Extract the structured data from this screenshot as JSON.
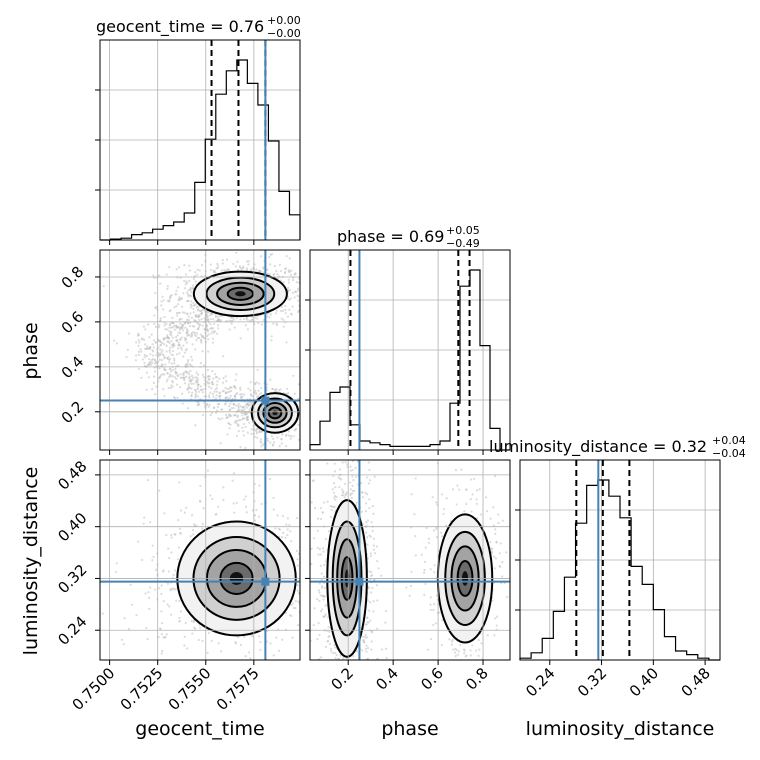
{
  "chart_data": {
    "type": "corner",
    "parameters": [
      "geocent_time",
      "phase",
      "luminosity_distance"
    ],
    "titles": [
      {
        "param": "geocent_time",
        "text": "geocent_time = 0.76",
        "sup": "+0.00",
        "sub": "−0.00"
      },
      {
        "param": "phase",
        "text": "phase = 0.69",
        "sup": "+0.05",
        "sub": "−0.49"
      },
      {
        "param": "luminosity_distance",
        "text": "luminosity_distance = 0.32",
        "sup": "+0.04",
        "sub": "−0.04"
      }
    ],
    "ranges": {
      "geocent_time": [
        0.7495,
        0.7599
      ],
      "phase": [
        0.03,
        0.92
      ],
      "luminosity_distance": [
        0.194,
        0.503
      ]
    },
    "ticks": {
      "geocent_time": [
        "0.7500",
        "0.7525",
        "0.7550",
        "0.7575"
      ],
      "phase": [
        "0.2",
        "0.4",
        "0.6",
        "0.8"
      ],
      "luminosity_distance": [
        "0.24",
        "0.32",
        "0.40",
        "0.48"
      ]
    },
    "tick_values": {
      "geocent_time": [
        0.75,
        0.7525,
        0.755,
        0.7575
      ],
      "phase": [
        0.2,
        0.4,
        0.6,
        0.8
      ],
      "luminosity_distance": [
        0.24,
        0.32,
        0.4,
        0.48
      ]
    },
    "truths": {
      "geocent_time": 0.7581,
      "phase": 0.25,
      "luminosity_distance": 0.315
    },
    "quantiles": {
      "geocent_time": [
        0.7553,
        0.7567,
        0.7581
      ],
      "phase": [
        0.21,
        0.69,
        0.74
      ],
      "luminosity_distance": [
        0.281,
        0.322,
        0.363
      ]
    },
    "histograms": {
      "geocent_time": [
        0.0,
        0.005,
        0.01,
        0.03,
        0.04,
        0.06,
        0.08,
        0.1,
        0.15,
        0.32,
        0.56,
        0.81,
        0.94,
        1.0,
        0.87,
        0.75,
        0.55,
        0.27,
        0.14
      ],
      "phase": [
        0.03,
        0.16,
        0.32,
        0.35,
        0.14,
        0.05,
        0.04,
        0.03,
        0.02,
        0.02,
        0.02,
        0.02,
        0.03,
        0.05,
        0.26,
        0.91,
        1.0,
        0.58,
        0.12,
        0.0
      ],
      "luminosity_distance": [
        0.01,
        0.04,
        0.12,
        0.27,
        0.46,
        0.76,
        0.97,
        1.0,
        0.91,
        0.79,
        0.52,
        0.42,
        0.28,
        0.13,
        0.05,
        0.03,
        0.01,
        0.0
      ]
    },
    "labels": {
      "x": [
        "geocent_time",
        "phase",
        "luminosity_distance"
      ],
      "y": [
        "phase",
        "luminosity_distance"
      ]
    },
    "panels_2d": [
      {
        "x": "geocent_time",
        "y": "phase",
        "modes": [
          {
            "cx": 0.7568,
            "cy": 0.725,
            "sx": 0.0011,
            "sy": 0.045
          },
          {
            "cx": 0.7586,
            "cy": 0.195,
            "sx": 0.00055,
            "sy": 0.04
          }
        ]
      },
      {
        "x": "geocent_time",
        "y": "luminosity_distance",
        "modes": [
          {
            "cx": 0.7566,
            "cy": 0.32,
            "sx": 0.0014,
            "sy": 0.04
          }
        ]
      },
      {
        "x": "phase",
        "y": "luminosity_distance",
        "modes": [
          {
            "cx": 0.195,
            "cy": 0.32,
            "sx": 0.04,
            "sy": 0.055
          },
          {
            "cx": 0.72,
            "cy": 0.32,
            "sx": 0.055,
            "sy": 0.045
          }
        ]
      }
    ]
  }
}
